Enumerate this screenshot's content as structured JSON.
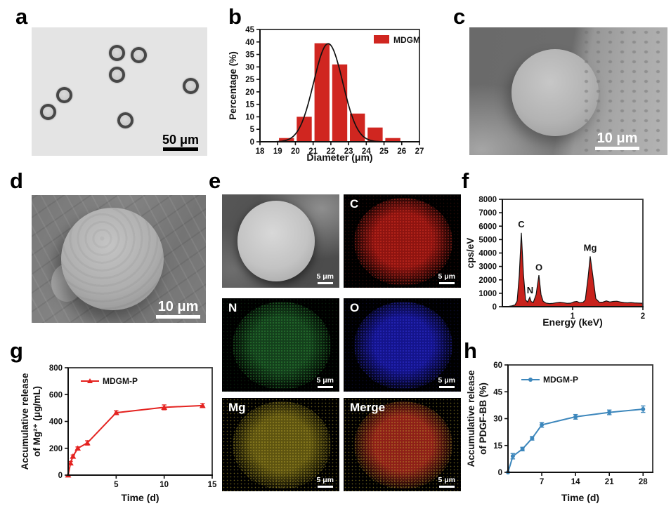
{
  "figure": {
    "panels": {
      "a": {
        "letter": "a",
        "type": "light-micrograph",
        "scalebar_label": "50 μm"
      },
      "b": {
        "letter": "b"
      },
      "c": {
        "letter": "c",
        "type": "sem-micrograph",
        "scalebar_label": "10 μm"
      },
      "d": {
        "letter": "d",
        "type": "sem-micrograph",
        "scalebar_label": "10 μm"
      },
      "e": {
        "letter": "e",
        "cells": [
          {
            "label": "",
            "kind": "sem",
            "scalebar_label": "5 μm",
            "color_core": "#c8c8c8",
            "color_speck": "#9a9a9a"
          },
          {
            "label": "C",
            "kind": "eds-map",
            "scalebar_label": "5 μm",
            "color_core": "#8e1410",
            "color_speck": "#ff4433"
          },
          {
            "label": "N",
            "kind": "eds-map",
            "scalebar_label": "5 μm",
            "color_core": "#14401c",
            "color_speck": "#3dbb46"
          },
          {
            "label": "O",
            "kind": "eds-map",
            "scalebar_label": "5 μm",
            "color_core": "#14148c",
            "color_speck": "#4141ff"
          },
          {
            "label": "Mg",
            "kind": "eds-map",
            "scalebar_label": "5 μm",
            "color_core": "#5e5410",
            "color_speck": "#d2bd36"
          },
          {
            "label": "Merge",
            "kind": "eds-map",
            "scalebar_label": "5 μm",
            "color_core": "#8e2018",
            "color_speck": "#cdb835"
          }
        ]
      },
      "f": {
        "letter": "f"
      },
      "g": {
        "letter": "g"
      },
      "h": {
        "letter": "h"
      }
    }
  },
  "chart_data": [
    {
      "id": "b",
      "type": "bar",
      "title": "",
      "xlabel": "Diameter (μm)",
      "ylabel": [
        "Percentage (%)"
      ],
      "xlim": [
        18,
        27
      ],
      "ylim": [
        0,
        45
      ],
      "xticks": [
        18,
        19,
        20,
        21,
        22,
        23,
        24,
        25,
        26,
        27
      ],
      "yticks": [
        0,
        5,
        10,
        15,
        20,
        25,
        30,
        35,
        40,
        45
      ],
      "categories": [
        19.5,
        20.5,
        21.5,
        22.5,
        23.5,
        24.5,
        25.5
      ],
      "values": [
        1.5,
        10,
        39.5,
        31,
        11.3,
        5.7,
        1.5
      ],
      "bar_width": 0.85,
      "color": "#d02620",
      "boxed": true,
      "fit_curve": {
        "type": "gaussian",
        "mu": 21.85,
        "sigma": 0.82,
        "amplitude": 39.3,
        "color": "#111111"
      },
      "legend": {
        "label": "MDGM",
        "swatch": "rect",
        "position": "top-right"
      }
    },
    {
      "id": "f",
      "type": "area",
      "title": "",
      "xlabel": "Energy (keV)",
      "ylabel": [
        "cps/eV"
      ],
      "xlim": [
        0,
        2
      ],
      "ylim": [
        0,
        8000
      ],
      "xticks": [
        1,
        2
      ],
      "yticks": [
        0,
        1000,
        2000,
        3000,
        4000,
        5000,
        6000,
        7000,
        8000
      ],
      "color": "#c8221c",
      "line_color": "#111111",
      "boxed": true,
      "points": [
        [
          0.1,
          30
        ],
        [
          0.14,
          70
        ],
        [
          0.18,
          130
        ],
        [
          0.21,
          420
        ],
        [
          0.24,
          2300
        ],
        [
          0.27,
          5500
        ],
        [
          0.3,
          2400
        ],
        [
          0.33,
          500
        ],
        [
          0.36,
          350
        ],
        [
          0.39,
          700
        ],
        [
          0.41,
          380
        ],
        [
          0.44,
          320
        ],
        [
          0.48,
          900
        ],
        [
          0.52,
          2350
        ],
        [
          0.55,
          900
        ],
        [
          0.58,
          400
        ],
        [
          0.62,
          270
        ],
        [
          0.67,
          230
        ],
        [
          0.72,
          250
        ],
        [
          0.77,
          300
        ],
        [
          0.82,
          330
        ],
        [
          0.87,
          300
        ],
        [
          0.92,
          250
        ],
        [
          0.97,
          260
        ],
        [
          1.02,
          360
        ],
        [
          1.06,
          390
        ],
        [
          1.1,
          300
        ],
        [
          1.15,
          330
        ],
        [
          1.18,
          500
        ],
        [
          1.22,
          2200
        ],
        [
          1.25,
          3750
        ],
        [
          1.29,
          2200
        ],
        [
          1.33,
          600
        ],
        [
          1.38,
          330
        ],
        [
          1.43,
          340
        ],
        [
          1.48,
          430
        ],
        [
          1.53,
          350
        ],
        [
          1.58,
          390
        ],
        [
          1.63,
          410
        ],
        [
          1.68,
          350
        ],
        [
          1.73,
          310
        ],
        [
          1.78,
          290
        ],
        [
          1.83,
          310
        ],
        [
          1.88,
          280
        ],
        [
          1.93,
          270
        ],
        [
          2.0,
          255
        ]
      ],
      "annotations": [
        {
          "x": 0.27,
          "y": 5900,
          "text": "C"
        },
        {
          "x": 0.395,
          "y": 1000,
          "text": "N"
        },
        {
          "x": 0.52,
          "y": 2700,
          "text": "O"
        },
        {
          "x": 1.25,
          "y": 4150,
          "text": "Mg"
        }
      ]
    },
    {
      "id": "g",
      "type": "line",
      "title": "",
      "xlabel": "Time (d)",
      "ylabel": [
        "Accumulative release",
        "of Mg²⁺ (μg/mL)"
      ],
      "xlim": [
        0,
        15
      ],
      "ylim": [
        0,
        800
      ],
      "xticks": [
        5,
        10,
        15
      ],
      "yticks": [
        0,
        200,
        400,
        600,
        800
      ],
      "color": "#e42320",
      "marker": "triangle",
      "boxed": true,
      "x": [
        0,
        0.25,
        0.5,
        1,
        2,
        5,
        10,
        14
      ],
      "y": [
        0,
        90,
        140,
        200,
        240,
        465,
        505,
        518
      ],
      "yerr": [
        0,
        12,
        10,
        10,
        16,
        14,
        18,
        14
      ],
      "legend": {
        "label": "MDGM-P",
        "swatch": "line-marker",
        "position": "top-left"
      }
    },
    {
      "id": "h",
      "type": "line",
      "title": "",
      "xlabel": "Time (d)",
      "ylabel": [
        "Accumulative release",
        "of PDGF-BB (%)"
      ],
      "xlim": [
        0,
        30
      ],
      "ylim": [
        0,
        60
      ],
      "xticks": [
        7,
        14,
        21,
        28
      ],
      "yticks": [
        0,
        15,
        30,
        45,
        60
      ],
      "color": "#3d87bc",
      "marker": "circle",
      "boxed": true,
      "x": [
        0,
        1,
        3,
        5,
        7,
        14,
        21,
        28
      ],
      "y": [
        0,
        9,
        13,
        19,
        26.5,
        31,
        33.5,
        35.3
      ],
      "yerr": [
        0,
        1.5,
        1,
        1,
        1.3,
        1.3,
        1.3,
        1.8
      ],
      "legend": {
        "label": "MDGM-P",
        "swatch": "line-marker",
        "position": "top-left"
      }
    }
  ]
}
